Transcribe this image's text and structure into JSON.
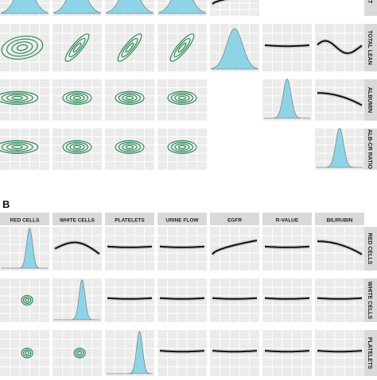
{
  "panel_a": {
    "row_labels": [
      "",
      "TOTAL LEAN",
      "ALBUMIN",
      "ALB-CR RATIO"
    ],
    "top_right_label_fragment": "AT",
    "cells": [
      [
        "density",
        "density",
        "density",
        "density",
        "line-rising",
        "blank",
        "blank"
      ],
      [
        "contour",
        "contour",
        "contour",
        "contour",
        "density",
        "line-flat",
        "line-wave"
      ],
      [
        "contour",
        "contour",
        "contour",
        "contour",
        "blank",
        "density",
        "line-falling"
      ],
      [
        "contour",
        "contour",
        "contour",
        "contour",
        "blank",
        "blank",
        "density"
      ]
    ]
  },
  "panel_b": {
    "label": "B",
    "column_headers": [
      "RED CELLS",
      "WHITE CELLS",
      "PLATELETS",
      "URINE FLOW",
      "EGFR",
      "R-VALUE",
      "BILIRUBIN"
    ],
    "row_labels": [
      "RED CELLS",
      "WHITE CELLS",
      "PLATELETS"
    ],
    "cells": [
      [
        "density",
        "line-arch",
        "line-flat",
        "line-flat",
        "line-rising",
        "line-flat",
        "line-falling"
      ],
      [
        "contour-small",
        "density",
        "line-flat",
        "line-flat",
        "line-flat",
        "line-flat",
        "line-flat"
      ],
      [
        "contour-small",
        "contour-small",
        "density",
        "line-flat",
        "line-flat",
        "line-flat",
        "line-flat"
      ]
    ]
  },
  "colors": {
    "panel_bg": "#ebebeb",
    "grid": "#ffffff",
    "strip_bg": "#d9d9d9",
    "contour": "#2e8b57",
    "density_fill": "#8fd3e6",
    "density_line": "#7a8a8f",
    "trend": "#111111"
  }
}
